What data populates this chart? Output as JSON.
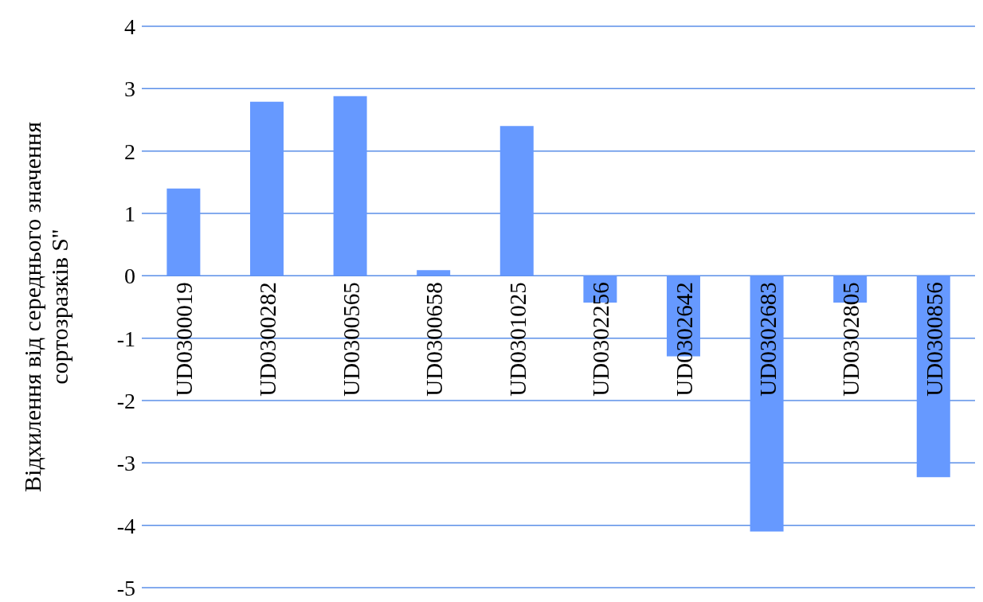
{
  "chart_data": {
    "type": "bar",
    "ylabel": "Відхилення від середнього значення\nсортозразків  S''",
    "categories": [
      "UD0300019",
      "UD0300282",
      "UD0300565",
      "UD0300658",
      "UD0301025",
      "UD0302256",
      "UD0302642",
      "UD0302683",
      "UD0302805",
      "UD0300856"
    ],
    "values": [
      1.4,
      2.79,
      2.88,
      0.09,
      2.4,
      -0.43,
      -1.29,
      -4.1,
      -0.43,
      -3.23
    ],
    "color": "#6699ff",
    "ylim": [
      -5,
      4
    ],
    "yticks": [
      -5,
      -4,
      -3,
      -2,
      -1,
      0,
      1,
      2,
      3,
      4
    ],
    "grid": "y"
  }
}
